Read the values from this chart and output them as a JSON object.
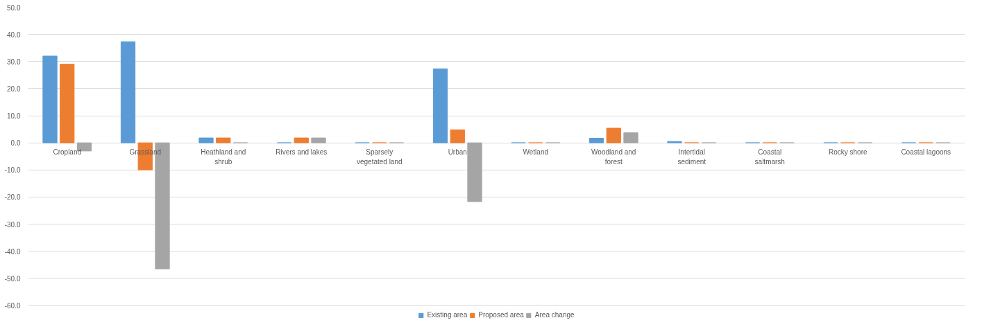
{
  "chart_data": {
    "type": "bar",
    "categories": [
      "Cropland",
      "Grassland",
      "Heathland and shrub",
      "Rivers and lakes",
      "Sparsely vegetated land",
      "Urban",
      "Wetland",
      "Woodland and forest",
      "Intertidal sediment",
      "Coastal saltmarsh",
      "Rocky shore",
      "Coastal lagoons"
    ],
    "series": [
      {
        "name": "Existing area",
        "color": "#5b9bd5",
        "values": [
          32.0,
          37.3,
          1.8,
          0,
          0,
          27.3,
          0,
          1.7,
          0.5,
          0,
          0,
          0
        ]
      },
      {
        "name": "Proposed area",
        "color": "#ed7d31",
        "values": [
          29.0,
          -10.0,
          1.8,
          1.8,
          0,
          4.8,
          0,
          5.4,
          0,
          0,
          0,
          0
        ]
      },
      {
        "name": "Area change",
        "color": "#a5a5a5",
        "values": [
          -3.0,
          -46.5,
          0,
          1.8,
          0,
          -21.7,
          0,
          3.7,
          0,
          0,
          0,
          0
        ]
      }
    ],
    "ylim": [
      -65,
      50
    ],
    "yticks": [
      {
        "value": 50,
        "label": "50.0"
      },
      {
        "value": 40,
        "label": "40.0"
      },
      {
        "value": 30,
        "label": "30.0"
      },
      {
        "value": 20,
        "label": "20.0"
      },
      {
        "value": 10,
        "label": "10.0"
      },
      {
        "value": 0,
        "label": "0.0"
      },
      {
        "value": -10,
        "label": "-10.0"
      },
      {
        "value": -20,
        "label": "-20.0"
      },
      {
        "value": -30,
        "label": "-30.0"
      },
      {
        "value": -40,
        "label": "-40.0"
      },
      {
        "value": -50,
        "label": "-50.0"
      },
      {
        "value": -60,
        "label": "-60.0"
      }
    ],
    "grid": "y",
    "legend": "bottom"
  }
}
